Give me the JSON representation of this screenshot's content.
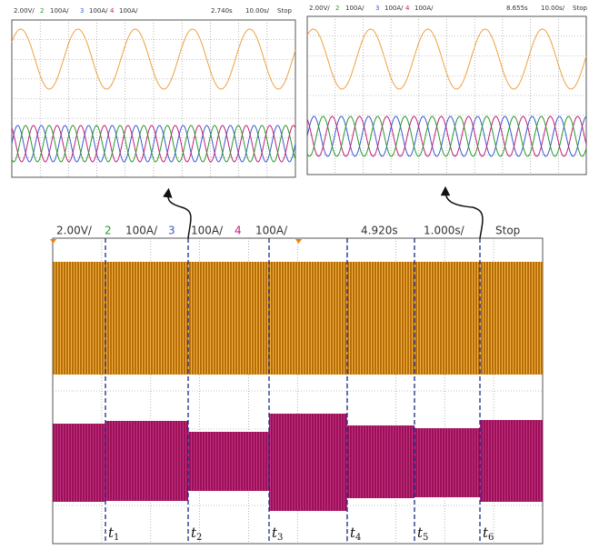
{
  "panels": [
    {
      "header": [
        "2.00V/",
        "2",
        "100A/",
        "3",
        "100A/",
        "4",
        "100A/",
        "2.740s",
        "10.00s/",
        "Stop"
      ]
    },
    {
      "header": [
        "2.00V/",
        "2",
        "100A/",
        "3",
        "100A/",
        "4",
        "100A/",
        "8.655s",
        "10.00s/",
        "Stop"
      ]
    },
    {
      "header": [
        "2.00V/",
        "2",
        "100A/",
        "3",
        "100A/",
        "4",
        "100A/",
        "4.920s",
        "1.000s/",
        "Stop"
      ]
    }
  ],
  "markers": [
    {
      "symbol": "t",
      "index": "1"
    },
    {
      "symbol": "t",
      "index": "2"
    },
    {
      "symbol": "t",
      "index": "3"
    },
    {
      "symbol": "t",
      "index": "4"
    },
    {
      "symbol": "t",
      "index": "5"
    },
    {
      "symbol": "t",
      "index": "6"
    }
  ]
}
